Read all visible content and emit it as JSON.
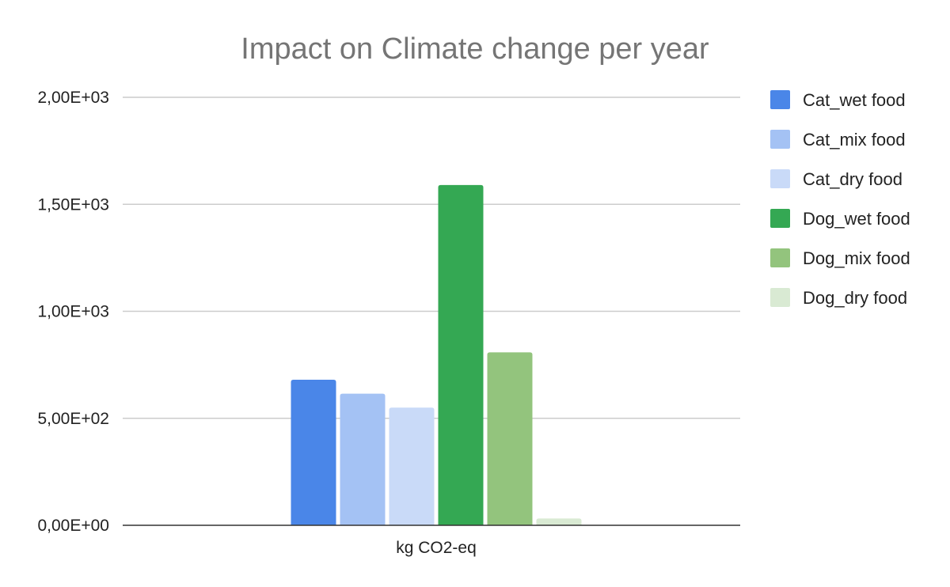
{
  "chart_data": {
    "type": "bar",
    "title": "Impact on Climate change per year",
    "categories": [
      "kg CO2-eq"
    ],
    "series": [
      {
        "name": "Cat_wet food",
        "color": "#4a86e8",
        "values": [
          680
        ]
      },
      {
        "name": "Cat_mix food",
        "color": "#a4c2f4",
        "values": [
          615
        ]
      },
      {
        "name": "Cat_dry food",
        "color": "#c9daf8",
        "values": [
          550
        ]
      },
      {
        "name": "Dog_wet food",
        "color": "#34a853",
        "values": [
          1590
        ]
      },
      {
        "name": "Dog_mix food",
        "color": "#93c47d",
        "values": [
          808
        ]
      },
      {
        "name": "Dog_dry food",
        "color": "#d9ead3",
        "values": [
          32
        ]
      }
    ],
    "ylim": [
      0,
      2000
    ],
    "yticks": [
      0,
      500,
      1000,
      1500,
      2000
    ],
    "ytick_labels": [
      "0,00E+00",
      "5,00E+02",
      "1,00E+03",
      "1,50E+03",
      "2,00E+03"
    ],
    "xlabel": "",
    "ylabel": "",
    "grid": true,
    "legend_position": "right"
  }
}
